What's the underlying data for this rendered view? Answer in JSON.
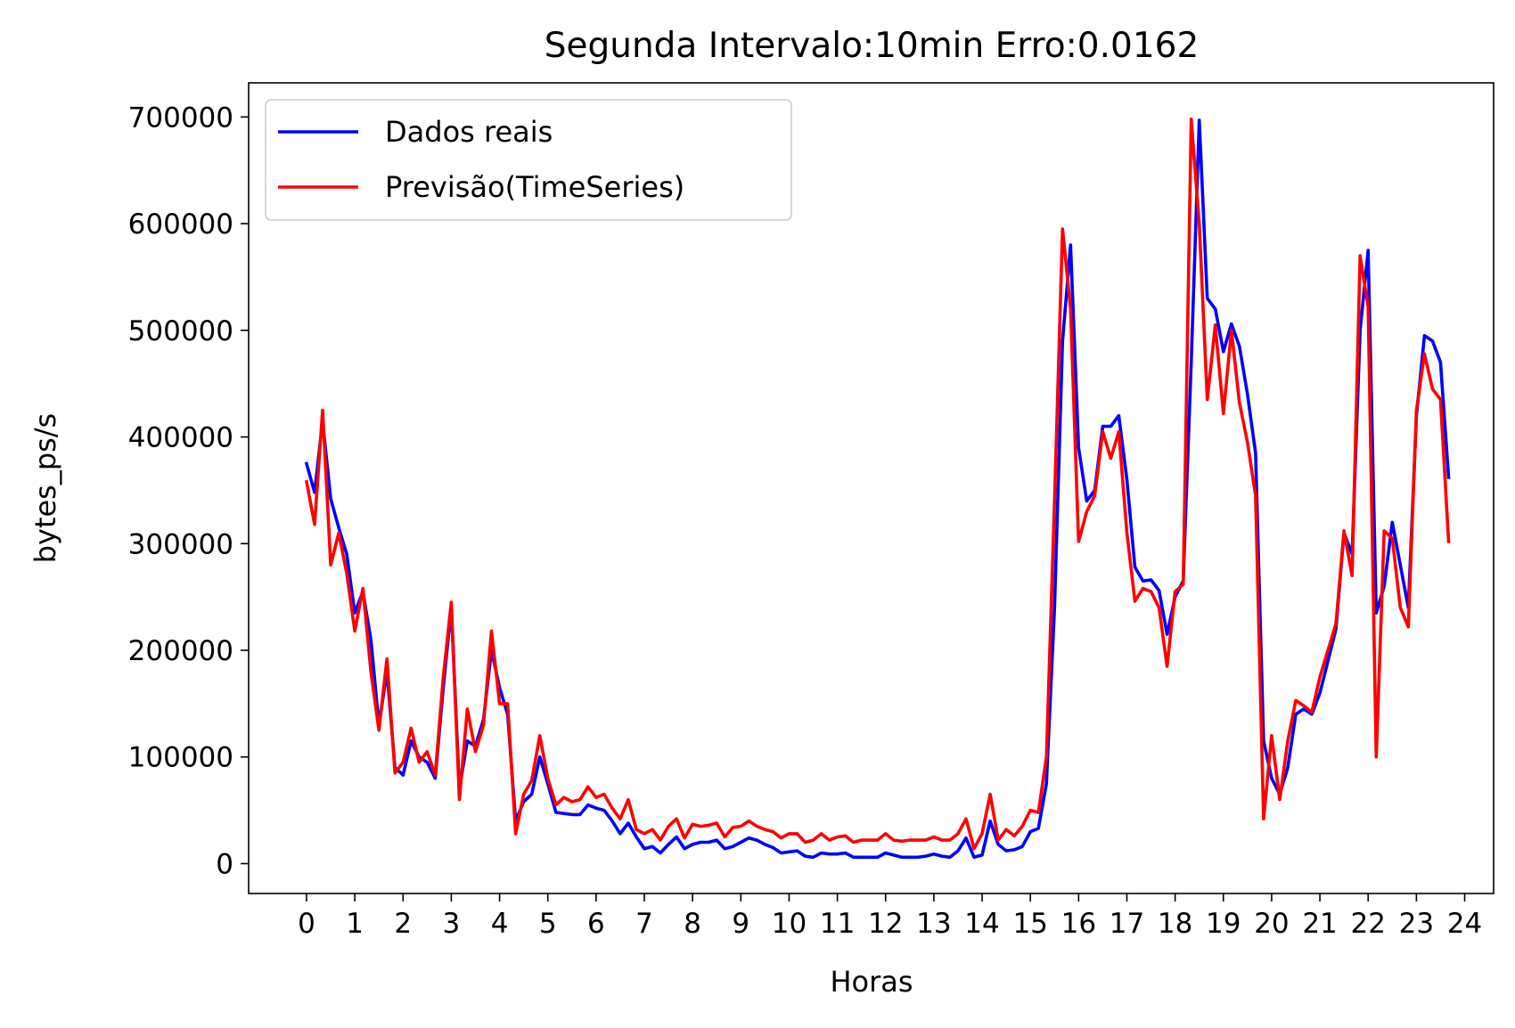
{
  "chart_data": {
    "type": "line",
    "title": "Segunda Intervalo:10min Erro:0.0162",
    "xlabel": "Horas",
    "ylabel": "bytes_ps/s",
    "xlim": [
      -1.2,
      24.6
    ],
    "ylim": [
      -28000,
      732000
    ],
    "xticks": [
      0,
      1,
      2,
      3,
      4,
      5,
      6,
      7,
      8,
      9,
      10,
      11,
      12,
      13,
      14,
      15,
      16,
      17,
      18,
      19,
      20,
      21,
      22,
      23,
      24
    ],
    "xtick_labels": [
      "0",
      "1",
      "2",
      "3",
      "4",
      "5",
      "6",
      "7",
      "8",
      "9",
      "10",
      "11",
      "12",
      "13",
      "14",
      "15",
      "16",
      "17",
      "18",
      "19",
      "20",
      "21",
      "22",
      "23",
      "24"
    ],
    "yticks": [
      0,
      100000,
      200000,
      300000,
      400000,
      500000,
      600000,
      700000
    ],
    "ytick_labels": [
      "0",
      "100000",
      "200000",
      "300000",
      "400000",
      "500000",
      "600000",
      "700000"
    ],
    "grid": false,
    "legend_position": "top-left",
    "series": [
      {
        "name": "Dados reais",
        "color": "#0000ff",
        "x": [
          0,
          0.167,
          0.333,
          0.5,
          0.667,
          0.833,
          1,
          1.167,
          1.333,
          1.5,
          1.667,
          1.833,
          2,
          2.167,
          2.333,
          2.5,
          2.667,
          2.833,
          3,
          3.167,
          3.333,
          3.5,
          3.667,
          3.833,
          4,
          4.167,
          4.333,
          4.5,
          4.667,
          4.833,
          5,
          5.167,
          5.333,
          5.5,
          5.667,
          5.833,
          6,
          6.167,
          6.333,
          6.5,
          6.667,
          6.833,
          7,
          7.167,
          7.333,
          7.5,
          7.667,
          7.833,
          8,
          8.167,
          8.333,
          8.5,
          8.667,
          8.833,
          9,
          9.167,
          9.333,
          9.5,
          9.667,
          9.833,
          10,
          10.167,
          10.333,
          10.5,
          10.667,
          10.833,
          11,
          11.167,
          11.333,
          11.5,
          11.667,
          11.833,
          12,
          12.167,
          12.333,
          12.5,
          12.667,
          12.833,
          13,
          13.167,
          13.333,
          13.5,
          13.667,
          13.833,
          14,
          14.167,
          14.333,
          14.5,
          14.667,
          14.833,
          15,
          15.167,
          15.333,
          15.5,
          15.667,
          15.833,
          16,
          16.167,
          16.333,
          16.5,
          16.667,
          16.833,
          17,
          17.167,
          17.333,
          17.5,
          17.667,
          17.833,
          18,
          18.167,
          18.333,
          18.5,
          18.667,
          18.833,
          19,
          19.167,
          19.333,
          19.5,
          19.667,
          19.833,
          20,
          20.167,
          20.333,
          20.5,
          20.667,
          20.833,
          21,
          21.167,
          21.333,
          21.5,
          21.667,
          21.833,
          22,
          22.167,
          22.333,
          22.5,
          22.667,
          22.833,
          23,
          23.167,
          23.333,
          23.5,
          23.667
        ],
        "values": [
          375000,
          348000,
          415000,
          342000,
          315000,
          290000,
          235000,
          255000,
          210000,
          130000,
          180000,
          90000,
          83000,
          115000,
          100000,
          95000,
          80000,
          165000,
          240000,
          70000,
          115000,
          110000,
          135000,
          200000,
          165000,
          140000,
          40000,
          58000,
          65000,
          100000,
          75000,
          48000,
          47000,
          46000,
          46000,
          55000,
          52000,
          50000,
          40000,
          28000,
          38000,
          25000,
          14000,
          16000,
          10000,
          18000,
          25000,
          14000,
          18000,
          20000,
          20000,
          22000,
          14000,
          16000,
          20000,
          24000,
          22000,
          18000,
          15000,
          10000,
          11000,
          12000,
          7000,
          6000,
          10000,
          9000,
          9000,
          10000,
          6000,
          6000,
          6000,
          6000,
          10000,
          8000,
          6000,
          6000,
          6000,
          7000,
          9000,
          7000,
          6000,
          12000,
          24000,
          6000,
          8000,
          40000,
          18000,
          12000,
          13000,
          16000,
          30000,
          33000,
          75000,
          240000,
          490000,
          580000,
          390000,
          340000,
          350000,
          410000,
          410000,
          420000,
          360000,
          278000,
          265000,
          266000,
          256000,
          215000,
          250000,
          265000,
          470000,
          697000,
          530000,
          520000,
          480000,
          506000,
          485000,
          440000,
          385000,
          115000,
          80000,
          65000,
          90000,
          140000,
          145000,
          140000,
          160000,
          190000,
          220000,
          310000,
          290000,
          500000,
          575000,
          235000,
          260000,
          320000,
          280000,
          240000,
          420000,
          495000,
          490000,
          470000,
          362000
        ]
      },
      {
        "name": "Previsão(TimeSeries)",
        "color": "#ff0000",
        "x": [
          0,
          0.167,
          0.333,
          0.5,
          0.667,
          0.833,
          1,
          1.167,
          1.333,
          1.5,
          1.667,
          1.833,
          2,
          2.167,
          2.333,
          2.5,
          2.667,
          2.833,
          3,
          3.167,
          3.333,
          3.5,
          3.667,
          3.833,
          4,
          4.167,
          4.333,
          4.5,
          4.667,
          4.833,
          5,
          5.167,
          5.333,
          5.5,
          5.667,
          5.833,
          6,
          6.167,
          6.333,
          6.5,
          6.667,
          6.833,
          7,
          7.167,
          7.333,
          7.5,
          7.667,
          7.833,
          8,
          8.167,
          8.333,
          8.5,
          8.667,
          8.833,
          9,
          9.167,
          9.333,
          9.5,
          9.667,
          9.833,
          10,
          10.167,
          10.333,
          10.5,
          10.667,
          10.833,
          11,
          11.167,
          11.333,
          11.5,
          11.667,
          11.833,
          12,
          12.167,
          12.333,
          12.5,
          12.667,
          12.833,
          13,
          13.167,
          13.333,
          13.5,
          13.667,
          13.833,
          14,
          14.167,
          14.333,
          14.5,
          14.667,
          14.833,
          15,
          15.167,
          15.333,
          15.5,
          15.667,
          15.833,
          16,
          16.167,
          16.333,
          16.5,
          16.667,
          16.833,
          17,
          17.167,
          17.333,
          17.5,
          17.667,
          17.833,
          18,
          18.167,
          18.333,
          18.5,
          18.667,
          18.833,
          19,
          19.167,
          19.333,
          19.5,
          19.667,
          19.833,
          20,
          20.167,
          20.333,
          20.5,
          20.667,
          20.833,
          21,
          21.167,
          21.333,
          21.5,
          21.667,
          21.833,
          22,
          22.167,
          22.333,
          22.5,
          22.667,
          22.833,
          23,
          23.167,
          23.333,
          23.5,
          23.667
        ],
        "values": [
          358000,
          318000,
          425000,
          280000,
          310000,
          272000,
          218000,
          258000,
          180000,
          125000,
          192000,
          85000,
          95000,
          127000,
          95000,
          105000,
          83000,
          175000,
          245000,
          60000,
          145000,
          105000,
          130000,
          218000,
          150000,
          150000,
          28000,
          65000,
          78000,
          120000,
          80000,
          55000,
          62000,
          58000,
          60000,
          72000,
          62000,
          65000,
          52000,
          42000,
          60000,
          32000,
          28000,
          32000,
          22000,
          35000,
          42000,
          24000,
          37000,
          35000,
          36000,
          38000,
          25000,
          34000,
          35000,
          40000,
          35000,
          32000,
          30000,
          24000,
          28000,
          28000,
          20000,
          22000,
          28000,
          22000,
          25000,
          26000,
          20000,
          22000,
          22000,
          22000,
          28000,
          22000,
          21000,
          22000,
          22000,
          22000,
          25000,
          22000,
          22000,
          28000,
          42000,
          14000,
          28000,
          65000,
          22000,
          32000,
          26000,
          35000,
          50000,
          48000,
          100000,
          340000,
          595000,
          520000,
          302000,
          330000,
          345000,
          405000,
          380000,
          405000,
          310000,
          246000,
          258000,
          255000,
          240000,
          185000,
          255000,
          262000,
          698000,
          600000,
          435000,
          505000,
          422000,
          500000,
          432000,
          395000,
          345000,
          42000,
          120000,
          60000,
          115000,
          153000,
          148000,
          142000,
          175000,
          200000,
          225000,
          312000,
          270000,
          570000,
          522000,
          100000,
          312000,
          305000,
          240000,
          222000,
          425000,
          478000,
          445000,
          435000,
          302000
        ]
      }
    ]
  }
}
